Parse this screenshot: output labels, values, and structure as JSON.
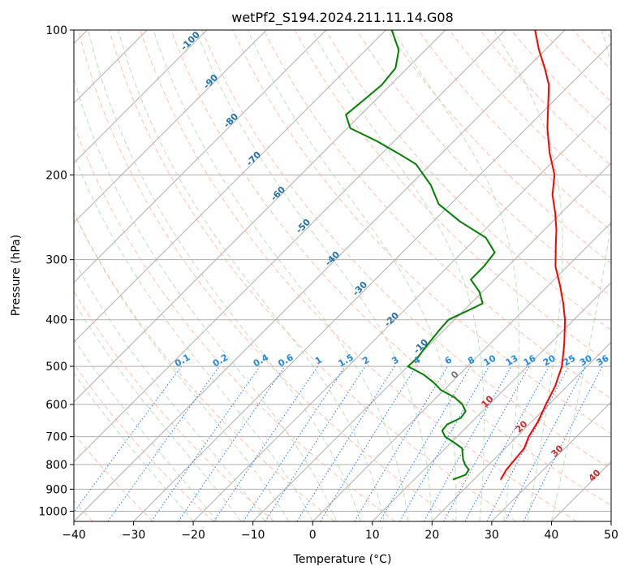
{
  "chart_data": {
    "type": "line",
    "title": "wetPf2_S194.2024.211.11.14.G08",
    "xlabel": "Temperature (°C)",
    "ylabel": "Pressure (hPa)",
    "xlim": [
      -40,
      50
    ],
    "ylim": [
      1050,
      100
    ],
    "y_scale": "log",
    "skew": "skew-T",
    "grid": true,
    "x_ticks": [
      "−40",
      "−30",
      "−20",
      "−10",
      "0",
      "10",
      "20",
      "30",
      "40",
      "50"
    ],
    "x_tick_values": [
      -40,
      -30,
      -20,
      -10,
      0,
      10,
      20,
      30,
      40,
      50
    ],
    "y_ticks": [
      "100",
      "200",
      "300",
      "400",
      "500",
      "600",
      "700",
      "800",
      "900",
      "1000"
    ],
    "y_tick_values": [
      100,
      200,
      300,
      400,
      500,
      600,
      700,
      800,
      900,
      1000
    ],
    "series": [
      {
        "color": "#ff0000",
        "p": [
          860,
          820,
          780,
          740,
          700,
          650,
          600,
          550,
          500,
          450,
          400,
          370,
          340,
          310,
          280,
          260,
          240,
          220,
          200,
          180,
          160,
          140,
          130,
          120,
          110,
          100
        ],
        "t": [
          24.5,
          23.8,
          23.5,
          23.2,
          22.0,
          21.0,
          19.5,
          18.0,
          15.8,
          12.5,
          8.5,
          5.5,
          2.0,
          -2.0,
          -5.5,
          -8.0,
          -11.0,
          -14.5,
          -17.5,
          -22.0,
          -26.5,
          -31.0,
          -33.5,
          -37.0,
          -41.0,
          -45.0
        ]
      },
      {
        "color": "#008000",
        "p": [
          860,
          840,
          820,
          800,
          780,
          760,
          740,
          720,
          700,
          680,
          660,
          640,
          620,
          600,
          580,
          560,
          540,
          520,
          500,
          480,
          460,
          440,
          420,
          400,
          380,
          370,
          350,
          330,
          310,
          290,
          270,
          250,
          230,
          210,
          190,
          180,
          170,
          160,
          150,
          140,
          130,
          120,
          110,
          100
        ],
        "t": [
          16.5,
          17.8,
          17.5,
          16.0,
          14.8,
          13.8,
          12.8,
          10.5,
          8.0,
          6.5,
          6.3,
          7.5,
          7.2,
          5.5,
          3.0,
          -0.5,
          -3.0,
          -6.0,
          -10.0,
          -9.8,
          -10.2,
          -10.5,
          -10.8,
          -11.0,
          -9.0,
          -8.0,
          -10.5,
          -14.0,
          -14.0,
          -14.5,
          -18.5,
          -25.5,
          -32.0,
          -36.5,
          -42.5,
          -47.5,
          -53.0,
          -59.5,
          -62.5,
          -62.0,
          -61.5,
          -62.0,
          -64.5,
          -69.0
        ]
      }
    ],
    "dry_adiabat_labels": [
      "-100",
      "-90",
      "-80",
      "-70",
      "-60",
      "-50",
      "-40",
      "-30",
      "-20",
      "-10",
      "0",
      "10",
      "20",
      "30",
      "40"
    ],
    "mixing_ratio_labels": [
      "0.1",
      "0.2",
      "0.4",
      "0.6",
      "1",
      "1.5",
      "2",
      "3",
      "4",
      "6",
      "8",
      "10",
      "13",
      "16",
      "20",
      "25",
      "30",
      "36"
    ]
  }
}
